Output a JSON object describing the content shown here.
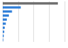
{
  "chart_data": {
    "type": "bar",
    "orientation": "horizontal",
    "categories": [
      null,
      null,
      null,
      null,
      null,
      null,
      null,
      null,
      null,
      null
    ],
    "values": [
      107,
      35,
      18,
      12,
      8,
      6,
      4,
      3,
      2,
      1
    ],
    "colors": [
      "#6d6d6d",
      "#2f7ed8",
      "#2f7ed8",
      "#2f7ed8",
      "#2f7ed8",
      "#2f7ed8",
      "#2f7ed8",
      "#2f7ed8",
      "#2f7ed8",
      "#2f7ed8"
    ],
    "xlim": [
      0,
      120
    ],
    "xticks": [
      0,
      30,
      60,
      90,
      120
    ],
    "grid": true,
    "tick_labels": false
  }
}
